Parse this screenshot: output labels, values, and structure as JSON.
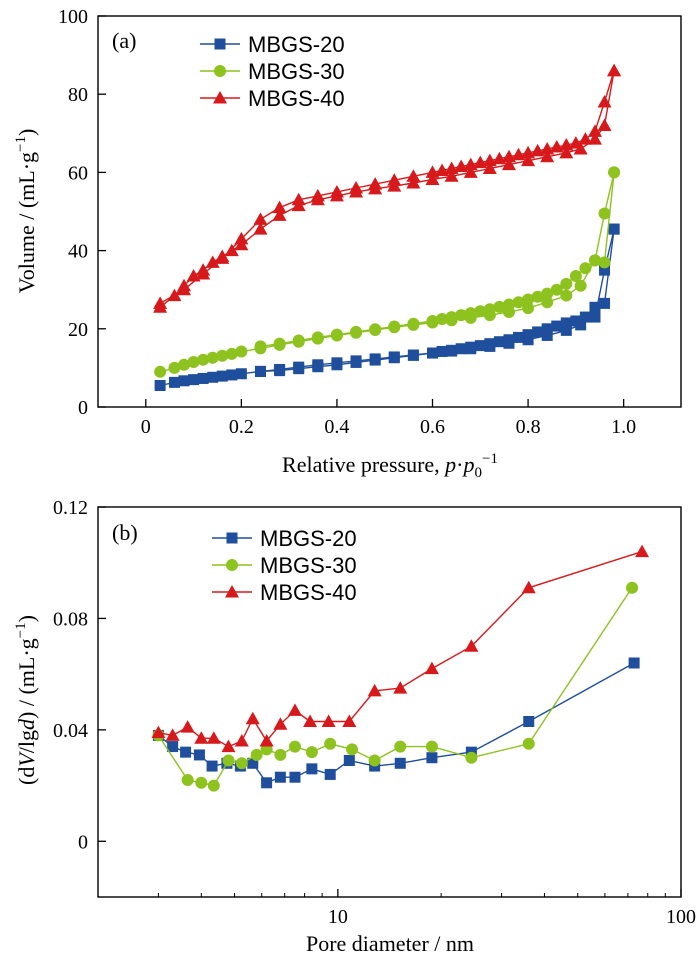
{
  "chart_data": [
    {
      "type": "line",
      "panel_label": "(a)",
      "xlabel": {
        "pre": "Relative pressure, ",
        "p": "p",
        "dot": "·",
        "p0": "p",
        "sub0": "0",
        "sup": "−1"
      },
      "ylabel": {
        "pre": "Volume / (mL·g",
        "sup": "−1",
        "post": ")"
      },
      "xlim": [
        -0.1,
        1.12
      ],
      "ylim": [
        0,
        100
      ],
      "xticks": [
        0,
        0.2,
        0.4,
        0.6,
        0.8,
        1.0
      ],
      "xtick_labels": [
        "0",
        "0.2",
        "0.4",
        "0.6",
        "0.8",
        "1.0"
      ],
      "yticks": [
        0,
        20,
        40,
        60,
        80,
        100
      ],
      "ytick_labels": [
        "0",
        "20",
        "40",
        "60",
        "80",
        "100"
      ],
      "legend_position": "top-left",
      "series": [
        {
          "name": "MBGS-20",
          "color": "#1f4e9c",
          "marker": "square",
          "adsorption": {
            "x": [
              0.03,
              0.06,
              0.08,
              0.1,
              0.12,
              0.14,
              0.16,
              0.18,
              0.2,
              0.24,
              0.28,
              0.32,
              0.36,
              0.4,
              0.44,
              0.48,
              0.52,
              0.56,
              0.6,
              0.64,
              0.68,
              0.72,
              0.76,
              0.8,
              0.84,
              0.88,
              0.91,
              0.94,
              0.96,
              0.98
            ],
            "y": [
              5.5,
              6.3,
              6.7,
              7.0,
              7.3,
              7.6,
              7.9,
              8.2,
              8.5,
              9.1,
              9.6,
              10.2,
              10.8,
              11.3,
              11.8,
              12.3,
              12.8,
              13.3,
              13.8,
              14.3,
              14.9,
              15.5,
              16.3,
              17.2,
              18.3,
              19.6,
              21.0,
              23.0,
              35.0,
              45.5
            ]
          },
          "desorption": {
            "x": [
              0.98,
              0.96,
              0.94,
              0.92,
              0.9,
              0.88,
              0.86,
              0.84,
              0.82,
              0.8,
              0.78,
              0.76,
              0.74,
              0.72,
              0.7,
              0.68,
              0.66,
              0.64,
              0.62,
              0.6,
              0.56,
              0.52,
              0.48,
              0.44,
              0.4,
              0.36,
              0.32,
              0.28,
              0.24
            ],
            "y": [
              45.5,
              26.5,
              25.5,
              23.0,
              22.0,
              21.5,
              20.7,
              20.0,
              19.2,
              18.5,
              17.8,
              17.2,
              16.7,
              16.2,
              15.7,
              15.3,
              14.9,
              14.5,
              14.2,
              13.8,
              13.2,
              12.6,
              12.0,
              11.4,
              10.8,
              10.3,
              9.8,
              9.3,
              9.1
            ]
          }
        },
        {
          "name": "MBGS-30",
          "color": "#8dc21f",
          "marker": "circle",
          "adsorption": {
            "x": [
              0.03,
              0.06,
              0.08,
              0.1,
              0.12,
              0.14,
              0.16,
              0.18,
              0.2,
              0.24,
              0.28,
              0.32,
              0.36,
              0.4,
              0.44,
              0.48,
              0.52,
              0.56,
              0.6,
              0.64,
              0.68,
              0.72,
              0.76,
              0.8,
              0.84,
              0.88,
              0.91,
              0.94,
              0.96,
              0.98
            ],
            "y": [
              9.0,
              10.0,
              10.8,
              11.5,
              12.1,
              12.6,
              13.1,
              13.6,
              14.2,
              15.0,
              15.9,
              16.7,
              17.5,
              18.3,
              19.0,
              19.7,
              20.4,
              21.0,
              21.6,
              22.2,
              22.8,
              23.5,
              24.3,
              25.3,
              26.8,
              28.5,
              31.0,
              37.5,
              49.5,
              60.0
            ]
          },
          "desorption": {
            "x": [
              0.98,
              0.96,
              0.94,
              0.92,
              0.9,
              0.88,
              0.86,
              0.84,
              0.82,
              0.8,
              0.78,
              0.76,
              0.74,
              0.72,
              0.7,
              0.68,
              0.66,
              0.64,
              0.62,
              0.6,
              0.56,
              0.52,
              0.48,
              0.44,
              0.4,
              0.36,
              0.32,
              0.28,
              0.24
            ],
            "y": [
              60.0,
              37.0,
              37.5,
              35.5,
              33.5,
              31.5,
              30.0,
              29.0,
              28.2,
              27.5,
              26.8,
              26.2,
              25.6,
              25.0,
              24.5,
              24.0,
              23.5,
              23.0,
              22.5,
              22.0,
              21.3,
              20.6,
              19.9,
              19.2,
              18.5,
              17.8,
              17.0,
              16.2,
              15.5
            ]
          }
        },
        {
          "name": "MBGS-40",
          "color": "#d7191c",
          "marker": "triangle",
          "adsorption": {
            "x": [
              0.03,
              0.06,
              0.08,
              0.1,
              0.12,
              0.14,
              0.16,
              0.18,
              0.2,
              0.24,
              0.28,
              0.32,
              0.36,
              0.4,
              0.44,
              0.48,
              0.52,
              0.56,
              0.6,
              0.64,
              0.68,
              0.72,
              0.76,
              0.8,
              0.84,
              0.88,
              0.91,
              0.94,
              0.96,
              0.98
            ],
            "y": [
              25.5,
              28.5,
              31.0,
              33.5,
              35.0,
              37.0,
              38.5,
              40.0,
              41.5,
              45.5,
              49.0,
              51.5,
              53.0,
              54.0,
              55.0,
              55.8,
              56.5,
              57.3,
              58.2,
              59.0,
              60.0,
              61.0,
              62.0,
              63.0,
              64.0,
              65.0,
              66.0,
              68.5,
              72.0,
              86.0
            ]
          },
          "desorption": {
            "x": [
              0.98,
              0.96,
              0.94,
              0.92,
              0.9,
              0.88,
              0.86,
              0.84,
              0.82,
              0.8,
              0.78,
              0.76,
              0.74,
              0.72,
              0.7,
              0.68,
              0.66,
              0.64,
              0.62,
              0.6,
              0.56,
              0.52,
              0.48,
              0.44,
              0.4,
              0.36,
              0.32,
              0.28,
              0.24,
              0.2,
              0.16,
              0.12,
              0.08,
              0.03
            ],
            "y": [
              86.0,
              78.0,
              70.5,
              68.5,
              67.5,
              67.0,
              66.5,
              66.0,
              65.5,
              65.0,
              64.5,
              64.0,
              63.5,
              63.0,
              62.5,
              62.0,
              61.5,
              61.0,
              60.5,
              60.0,
              59.0,
              58.0,
              57.0,
              56.0,
              55.0,
              54.0,
              53.0,
              51.0,
              48.0,
              43.0,
              38.0,
              34.0,
              30.0,
              26.5
            ]
          }
        }
      ]
    },
    {
      "type": "line",
      "panel_label": "(b)",
      "xlabel": {
        "text": "Pore diameter / nm"
      },
      "ylabel": {
        "pre": "(d",
        "V": "V",
        "mid": "/lg",
        "d": "d",
        "post1": ") / (mL·g",
        "sup": "−1",
        "post2": ")"
      },
      "xscale": "log",
      "xlim": [
        2.0,
        100
      ],
      "ylim": [
        -0.02,
        0.12
      ],
      "xticks": [
        10,
        100
      ],
      "xtick_labels": [
        "10",
        "100"
      ],
      "yticks": [
        0,
        0.04,
        0.08,
        0.12
      ],
      "ytick_labels": [
        "0",
        "0.04",
        "0.08",
        "0.12"
      ],
      "legend_position": "top-left",
      "series": [
        {
          "name": "MBGS-20",
          "color": "#1f4e9c",
          "marker": "square",
          "x": [
            3.0,
            3.3,
            3.6,
            3.95,
            4.3,
            4.75,
            5.2,
            5.65,
            6.2,
            6.8,
            7.5,
            8.4,
            9.5,
            10.8,
            12.8,
            15.2,
            18.8,
            24.5,
            36.0,
            73.0
          ],
          "y": [
            0.038,
            0.034,
            0.032,
            0.031,
            0.027,
            0.028,
            0.027,
            0.028,
            0.021,
            0.023,
            0.023,
            0.026,
            0.024,
            0.029,
            0.027,
            0.028,
            0.03,
            0.032,
            0.043,
            0.064
          ]
        },
        {
          "name": "MBGS-30",
          "color": "#8dc21f",
          "marker": "circle",
          "x": [
            3.0,
            3.65,
            4.0,
            4.35,
            4.8,
            5.25,
            5.8,
            6.2,
            6.8,
            7.5,
            8.4,
            9.5,
            11.0,
            12.8,
            15.2,
            18.8,
            24.5,
            36.0,
            72.0
          ],
          "y": [
            0.038,
            0.022,
            0.021,
            0.02,
            0.029,
            0.028,
            0.031,
            0.033,
            0.031,
            0.034,
            0.032,
            0.035,
            0.033,
            0.029,
            0.034,
            0.034,
            0.03,
            0.035,
            0.091
          ]
        },
        {
          "name": "MBGS-40",
          "color": "#d7191c",
          "marker": "triangle",
          "x": [
            3.0,
            3.3,
            3.65,
            4.0,
            4.35,
            4.8,
            5.25,
            5.65,
            6.2,
            6.8,
            7.5,
            8.3,
            9.4,
            10.8,
            12.8,
            15.2,
            18.8,
            24.5,
            36.0,
            77.0
          ],
          "y": [
            0.039,
            0.038,
            0.041,
            0.037,
            0.037,
            0.034,
            0.036,
            0.044,
            0.036,
            0.042,
            0.047,
            0.043,
            0.043,
            0.043,
            0.054,
            0.055,
            0.062,
            0.07,
            0.091,
            0.104
          ]
        }
      ]
    }
  ]
}
